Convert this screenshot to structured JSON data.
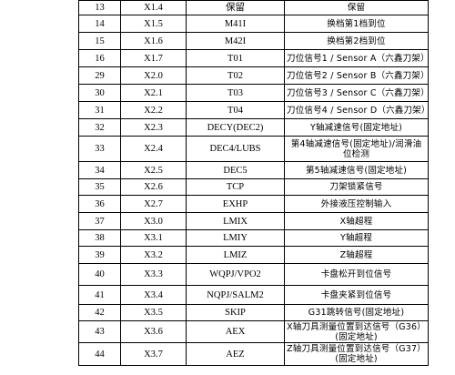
{
  "rows": [
    {
      "no": "13",
      "addr": "X1.4",
      "sig": "保留",
      "desc": "保留"
    },
    {
      "no": "14",
      "addr": "X1.5",
      "sig": "M41I",
      "desc": "换档第1档到位"
    },
    {
      "no": "15",
      "addr": "X1.6",
      "sig": "M42I",
      "desc": "换档第2档到位"
    },
    {
      "no": "16",
      "addr": "X1.7",
      "sig": "T01",
      "desc": "刀位信号1 / Sensor A（六鑫刀架）"
    },
    {
      "no": "29",
      "addr": "X2.0",
      "sig": "T02",
      "desc": "刀位信号2 / Sensor B（六鑫刀架）"
    },
    {
      "no": "30",
      "addr": "X2.1",
      "sig": "T03",
      "desc": "刀位信号3 / Sensor C（六鑫刀架）"
    },
    {
      "no": "31",
      "addr": "X2.2",
      "sig": "T04",
      "desc": "刀位信号4 / Sensor D（六鑫刀架）"
    },
    {
      "no": "32",
      "addr": "X2.3",
      "sig": "DECY(DEC2)",
      "desc": "Y轴减速信号(固定地址)"
    },
    {
      "no": "33",
      "addr": "X2.4",
      "sig": "DEC4/LUBS",
      "desc": "第4轴减速信号(固定地址)/润滑油位检测"
    },
    {
      "no": "34",
      "addr": "X2.5",
      "sig": "DEC5",
      "desc": "第5轴减速信号(固定地址)"
    },
    {
      "no": "35",
      "addr": "X2.6",
      "sig": "TCP",
      "desc": "刀架锁紧信号"
    },
    {
      "no": "36",
      "addr": "X2.7",
      "sig": "EXHP",
      "desc": "外接液压控制输入"
    },
    {
      "no": "37",
      "addr": "X3.0",
      "sig": "LMIX",
      "desc": "X轴超程"
    },
    {
      "no": "38",
      "addr": "X3.1",
      "sig": "LMIY",
      "desc": "Y轴超程"
    },
    {
      "no": "39",
      "addr": "X3.2",
      "sig": "LMIZ",
      "desc": "Z轴超程"
    },
    {
      "no": "40",
      "addr": "X3.3",
      "sig": "WQPJ/VPO2",
      "desc": "卡盘松开到位信号"
    },
    {
      "no": "41",
      "addr": "X3.4",
      "sig": "NQPJ/SALM2",
      "desc": "卡盘夹紧到位信号"
    },
    {
      "no": "42",
      "addr": "X3.5",
      "sig": "SKIP",
      "desc": "G31跳转信号(固定地址)"
    },
    {
      "no": "43",
      "addr": "X3.6",
      "sig": "AEX",
      "desc": "X轴刀具测量位置到达信号（G36）(固定地址)"
    },
    {
      "no": "44",
      "addr": "X3.7",
      "sig": "AEZ",
      "desc": "Z轴刀具测量位置到达信号（G37）(固定地址)"
    }
  ]
}
